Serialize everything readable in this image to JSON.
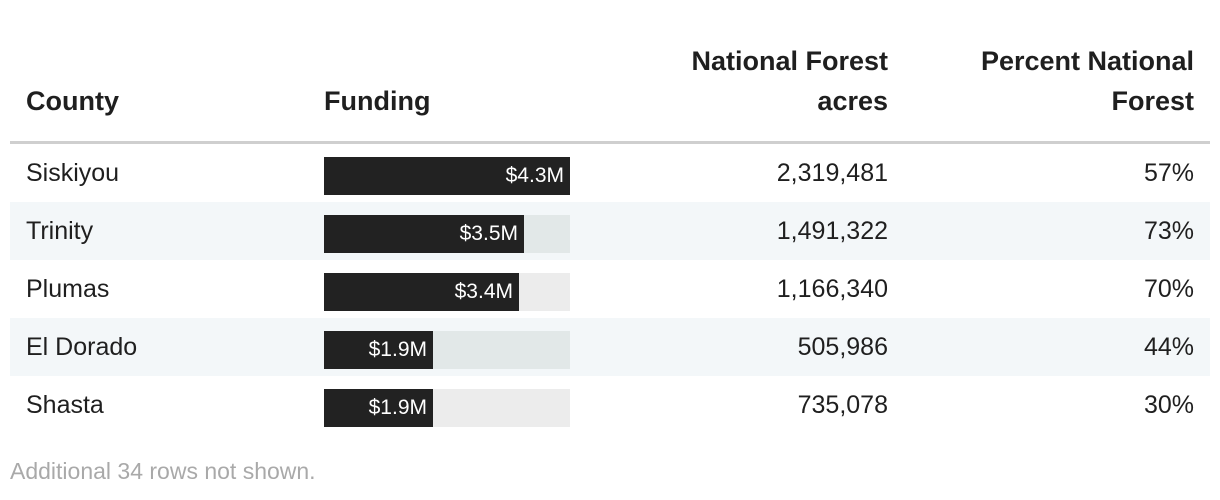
{
  "chart_data": {
    "type": "table",
    "columns": [
      "County",
      "Funding",
      "National Forest acres",
      "Percent National Forest"
    ],
    "funding_max": 4.3,
    "rows": [
      {
        "county": "Siskiyou",
        "funding": 4.3,
        "funding_label": "$4.3M",
        "acres": "2,319,481",
        "percent": "57%"
      },
      {
        "county": "Trinity",
        "funding": 3.5,
        "funding_label": "$3.5M",
        "acres": "1,491,322",
        "percent": "73%"
      },
      {
        "county": "Plumas",
        "funding": 3.4,
        "funding_label": "$3.4M",
        "acres": "1,166,340",
        "percent": "70%"
      },
      {
        "county": "El Dorado",
        "funding": 1.9,
        "funding_label": "$1.9M",
        "acres": "505,986",
        "percent": "44%"
      },
      {
        "county": "Shasta",
        "funding": 1.9,
        "funding_label": "$1.9M",
        "acres": "735,078",
        "percent": "30%"
      }
    ],
    "footnote": "Additional 34 rows not shown."
  },
  "colors": {
    "bar": "#222222",
    "track": "#ececec",
    "alt_row": "#f3f7f9"
  }
}
